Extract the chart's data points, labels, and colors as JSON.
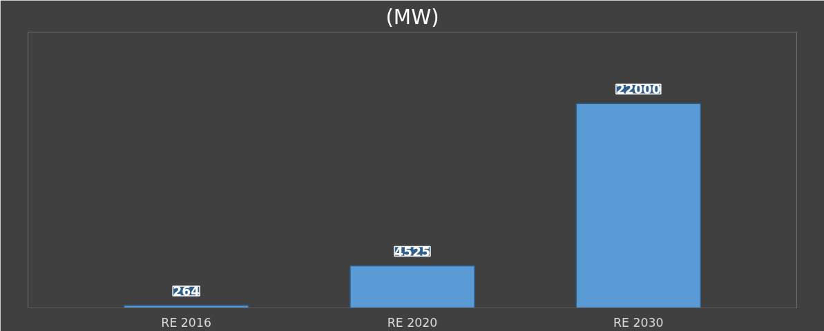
{
  "chart_data": {
    "type": "bar",
    "title": "(MW)",
    "categories": [
      "RE 2016",
      "RE 2020",
      "RE 2030"
    ],
    "values": [
      264,
      4525,
      22000
    ],
    "color": "#5b9bd5",
    "data_labels": true,
    "grid": false
  }
}
